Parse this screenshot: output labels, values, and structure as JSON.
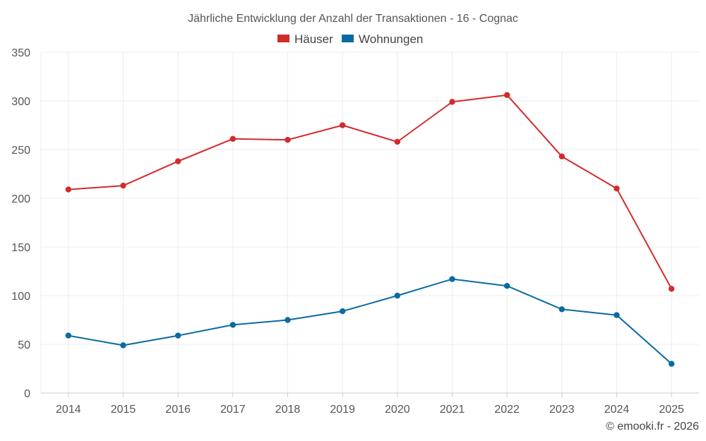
{
  "chart_data": {
    "type": "line",
    "title": "Jährliche Entwicklung der Anzahl der Transaktionen - 16 - Cognac",
    "categories": [
      "2014",
      "2015",
      "2016",
      "2017",
      "2018",
      "2019",
      "2020",
      "2021",
      "2022",
      "2023",
      "2024",
      "2025"
    ],
    "series": [
      {
        "name": "Häuser",
        "color": "#d32a2a",
        "values": [
          209,
          213,
          238,
          261,
          260,
          275,
          258,
          299,
          306,
          243,
          210,
          107
        ]
      },
      {
        "name": "Wohnungen",
        "color": "#0b6aa2",
        "values": [
          59,
          49,
          59,
          70,
          75,
          84,
          100,
          117,
          110,
          86,
          80,
          30
        ]
      }
    ],
    "ylim": [
      0,
      350
    ],
    "yticks": [
      "0",
      "50",
      "100",
      "150",
      "200",
      "250",
      "300",
      "350"
    ],
    "xlabel": "",
    "ylabel": "",
    "grid": true,
    "legend_position": "top-center"
  },
  "credit": "© emooki.fr - 2026"
}
